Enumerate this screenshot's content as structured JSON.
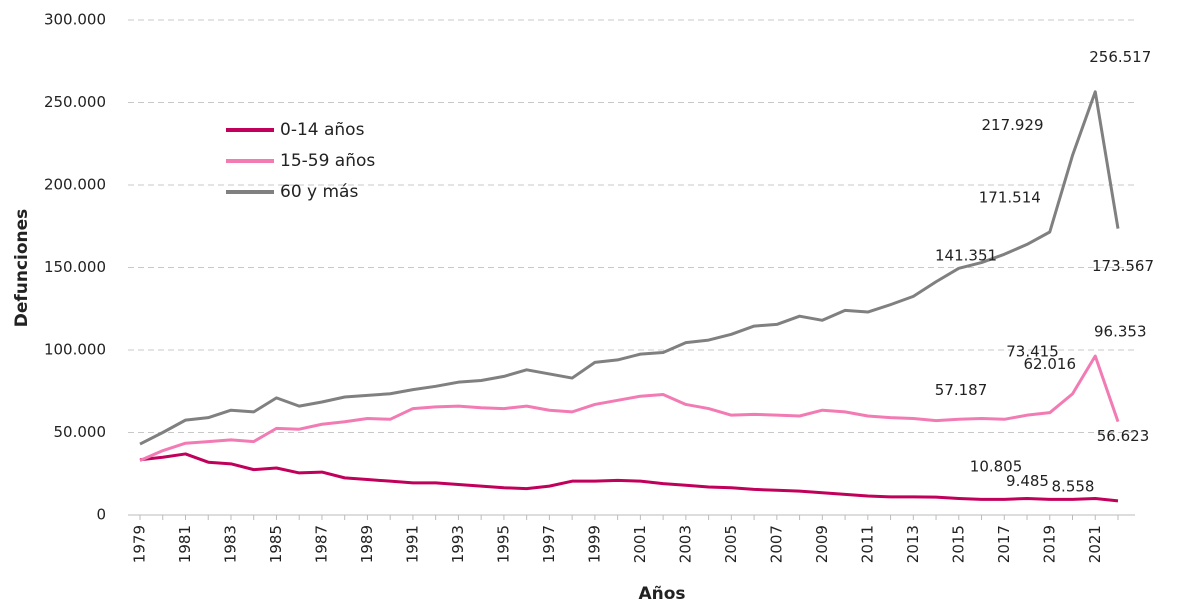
{
  "chart_data": {
    "type": "line",
    "ylabel": "Defunciones",
    "xlabel": "Años",
    "categories": [
      "1979",
      null,
      "1981",
      null,
      "1983",
      null,
      "1985",
      null,
      "1987",
      null,
      "1989",
      null,
      "1991",
      null,
      "1993",
      null,
      "1995",
      null,
      "1997",
      null,
      "1999",
      null,
      "2001",
      null,
      "2003",
      null,
      "2005",
      null,
      "2007",
      null,
      "2009",
      null,
      "2011",
      null,
      "2013",
      null,
      "2015",
      null,
      "2017",
      null,
      "2019",
      null,
      "2021",
      null
    ],
    "ylim": [
      0,
      300000
    ],
    "yticks": [
      0,
      {
        "value": 50000,
        "label": "50.000"
      },
      {
        "value": 100000,
        "label": "100.000"
      },
      {
        "value": 150000,
        "label": "150.000"
      },
      {
        "value": 200000,
        "label": "200.000"
      },
      {
        "value": 250000,
        "label": "250.000"
      },
      {
        "value": 300000,
        "label": "300.000"
      }
    ],
    "grid": true,
    "legend": "upper left",
    "series": [
      {
        "name": "0-14 años",
        "color": "#c0005a",
        "values": [
          33500,
          35000,
          37000,
          32000,
          31000,
          27500,
          28500,
          25500,
          26000,
          22500,
          21500,
          20500,
          19500,
          19500,
          18500,
          17500,
          16500,
          16000,
          17500,
          20500,
          20500,
          21000,
          20500,
          19000,
          18000,
          17000,
          16500,
          15500,
          15000,
          14500,
          13500,
          12500,
          11500,
          11000,
          11000,
          10805,
          10000,
          9500,
          9500,
          10000,
          9500,
          9485,
          10000,
          8558
        ],
        "value_labels": [
          null,
          null,
          null,
          null,
          null,
          null,
          null,
          null,
          null,
          null,
          null,
          null,
          null,
          null,
          null,
          null,
          null,
          null,
          null,
          null,
          null,
          null,
          null,
          null,
          null,
          null,
          null,
          null,
          null,
          null,
          null,
          null,
          null,
          null,
          null,
          "10.805",
          null,
          null,
          null,
          null,
          null,
          "9.485",
          null,
          "8.558"
        ]
      },
      {
        "name": "15-59 años",
        "color": "#f27bb4",
        "values": [
          33000,
          39000,
          43500,
          44500,
          45500,
          44500,
          52500,
          52000,
          55000,
          56500,
          58500,
          58000,
          64500,
          65500,
          66000,
          65000,
          64500,
          66000,
          63500,
          62500,
          67000,
          69500,
          72000,
          73000,
          67000,
          64500,
          60500,
          61000,
          60500,
          60000,
          63500,
          62500,
          60000,
          59000,
          58500,
          57187,
          58000,
          58500,
          58000,
          60500,
          62016,
          73415,
          96353,
          56623
        ],
        "value_labels": [
          null,
          null,
          null,
          null,
          null,
          null,
          null,
          null,
          null,
          null,
          null,
          null,
          null,
          null,
          null,
          null,
          null,
          null,
          null,
          null,
          null,
          null,
          null,
          null,
          null,
          null,
          null,
          null,
          null,
          null,
          null,
          null,
          null,
          null,
          null,
          "57.187",
          null,
          null,
          null,
          null,
          "62.016",
          "73.415",
          "96.353",
          "56.623"
        ]
      },
      {
        "name": "60 y  más",
        "color": "#808080",
        "values": [
          43000,
          50000,
          57500,
          59000,
          63500,
          62500,
          71000,
          66000,
          68500,
          71500,
          72500,
          73500,
          76000,
          78000,
          80500,
          81500,
          84000,
          88000,
          85500,
          83000,
          92500,
          94000,
          97500,
          98500,
          104500,
          106000,
          109500,
          114500,
          115500,
          120500,
          118000,
          124000,
          123000,
          127500,
          132500,
          141351,
          149500,
          153000,
          158000,
          164000,
          171514,
          217929,
          256517,
          173567
        ],
        "value_labels": [
          null,
          null,
          null,
          null,
          null,
          null,
          null,
          null,
          null,
          null,
          null,
          null,
          null,
          null,
          null,
          null,
          null,
          null,
          null,
          null,
          null,
          null,
          null,
          null,
          null,
          null,
          null,
          null,
          null,
          null,
          null,
          null,
          null,
          null,
          null,
          "141.351",
          null,
          null,
          null,
          null,
          "171.514",
          "217.929",
          "256.517",
          "173.567"
        ]
      }
    ]
  }
}
